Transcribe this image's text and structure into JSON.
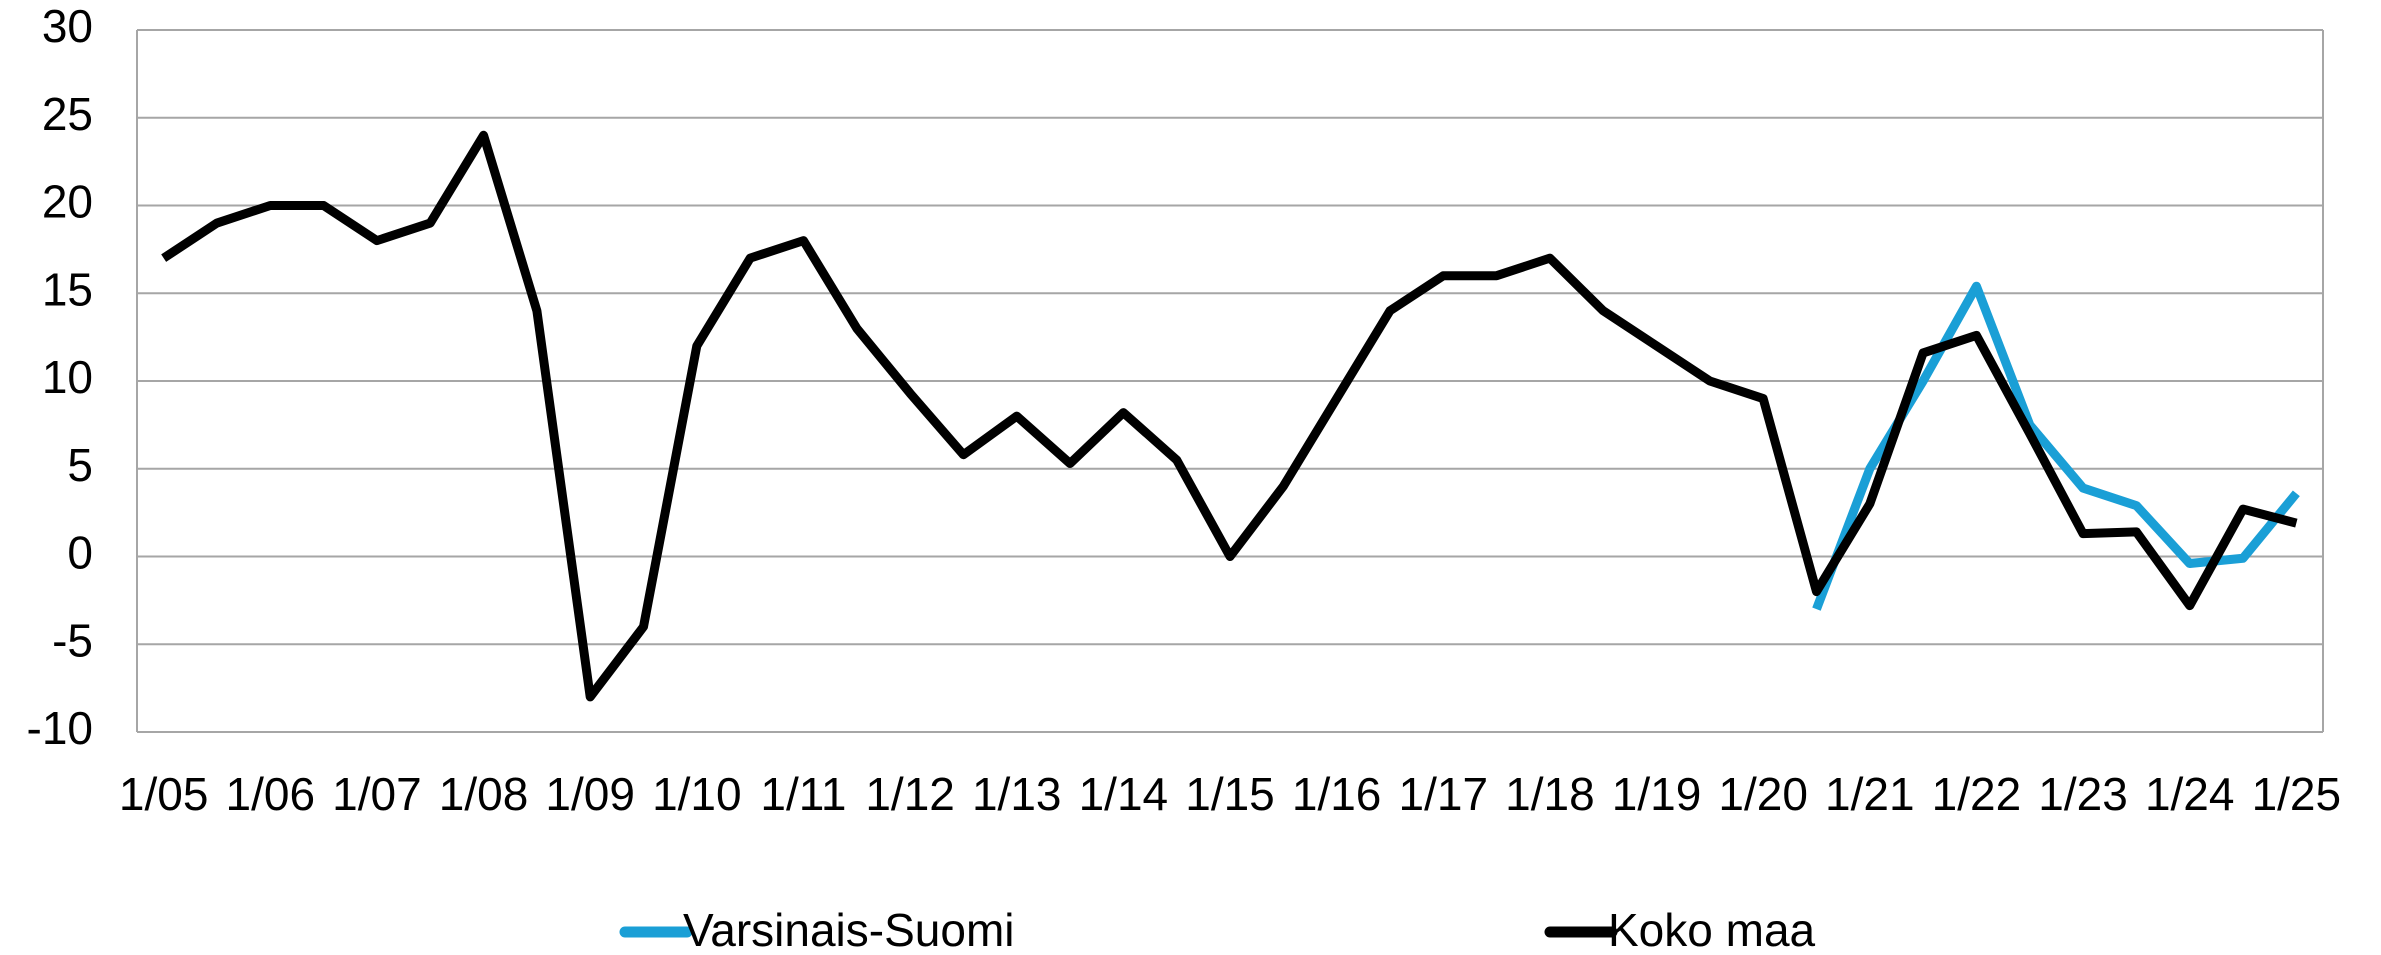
{
  "chart_data": {
    "type": "line",
    "categories": [
      "1/05",
      null,
      "1/06",
      null,
      "1/07",
      null,
      "1/08",
      null,
      "1/09",
      null,
      "1/10",
      null,
      "1/11",
      null,
      "1/12",
      null,
      "1/13",
      null,
      "1/14",
      null,
      "1/15",
      null,
      "1/16",
      null,
      "1/17",
      null,
      "1/18",
      null,
      "1/19",
      null,
      "1/20",
      null,
      "1/21",
      null,
      "1/22",
      null,
      "1/23",
      null,
      "1/24",
      null,
      "1/25"
    ],
    "series": [
      {
        "name": "Varsinais-Suomi",
        "color": "#1a9fd6",
        "values": [
          null,
          null,
          null,
          null,
          null,
          null,
          null,
          null,
          null,
          null,
          null,
          null,
          null,
          null,
          null,
          null,
          null,
          null,
          null,
          null,
          null,
          null,
          null,
          null,
          null,
          null,
          null,
          null,
          null,
          null,
          null,
          -3,
          5,
          10,
          15.4,
          7.5,
          3.9,
          2.9,
          -0.4,
          -0.1,
          3.6
        ]
      },
      {
        "name": "Koko maa",
        "color": "#000000",
        "values": [
          17,
          19,
          20,
          20,
          18,
          19,
          24,
          14,
          -8,
          -4,
          12,
          17,
          18,
          13,
          9.3,
          5.8,
          8,
          5.3,
          8.2,
          5.5,
          0,
          4,
          9,
          14,
          16,
          16,
          17,
          14,
          12,
          10,
          9,
          -2,
          3,
          11.6,
          12.6,
          7,
          1.3,
          1.4,
          -2.8,
          2.7,
          1.9
        ]
      }
    ],
    "ylim": [
      -10,
      30
    ],
    "yticks": [
      -10,
      -5,
      0,
      5,
      10,
      15,
      20,
      25,
      30
    ],
    "grid": true,
    "legend": "bottom"
  }
}
